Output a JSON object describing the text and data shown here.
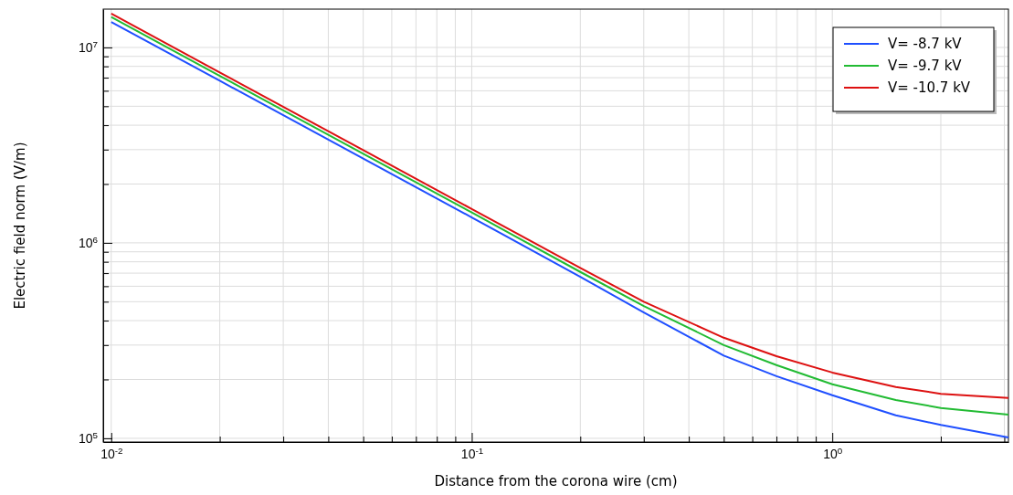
{
  "chart_data": {
    "type": "line",
    "xlabel": "Distance from the corona wire (cm)",
    "ylabel": "Electric field norm (V/m)",
    "log": "xy",
    "grid": true,
    "legend": "top right",
    "line_style": "solid",
    "marker": "none",
    "x": [
      0.01,
      0.02,
      0.05,
      0.1,
      0.2,
      0.3,
      0.5,
      0.7,
      1,
      1.5,
      2,
      3.08
    ],
    "xlim": [
      0.0095,
      3.08
    ],
    "xticks": [
      {
        "value": 0.01,
        "label": "10$^{-2}$"
      },
      {
        "value": 0.02,
        "label": null
      },
      {
        "value": 0.03,
        "label": null
      },
      {
        "value": 0.04,
        "label": null
      },
      {
        "value": 0.05,
        "label": null
      },
      {
        "value": 0.06,
        "label": null
      },
      {
        "value": 0.07,
        "label": null
      },
      {
        "value": 0.08,
        "label": null
      },
      {
        "value": 0.09,
        "label": null
      },
      {
        "value": 0.1,
        "label": "10$^{-1}$"
      },
      {
        "value": 0.2,
        "label": null
      },
      {
        "value": 0.3,
        "label": null
      },
      {
        "value": 0.4,
        "label": null
      },
      {
        "value": 0.5,
        "label": null
      },
      {
        "value": 0.6,
        "label": null
      },
      {
        "value": 0.7,
        "label": null
      },
      {
        "value": 0.8,
        "label": null
      },
      {
        "value": 0.9,
        "label": null
      },
      {
        "value": 1,
        "label": "10$^{0}$"
      },
      {
        "value": 2,
        "label": null
      },
      {
        "value": 3,
        "label": null
      }
    ],
    "ylim": [
      95700,
      15700000
    ],
    "yticks": [
      {
        "value": 100000,
        "label": "10$^{5}$"
      },
      {
        "value": 200000,
        "label": null
      },
      {
        "value": 300000,
        "label": null
      },
      {
        "value": 400000,
        "label": null
      },
      {
        "value": 500000,
        "label": null
      },
      {
        "value": 600000,
        "label": null
      },
      {
        "value": 700000,
        "label": null
      },
      {
        "value": 800000,
        "label": null
      },
      {
        "value": 900000,
        "label": null
      },
      {
        "value": 1000000,
        "label": "10$^{6}$"
      },
      {
        "value": 2000000,
        "label": null
      },
      {
        "value": 3000000,
        "label": null
      },
      {
        "value": 4000000,
        "label": null
      },
      {
        "value": 5000000,
        "label": null
      },
      {
        "value": 6000000,
        "label": null
      },
      {
        "value": 7000000,
        "label": null
      },
      {
        "value": 8000000,
        "label": null
      },
      {
        "value": 9000000,
        "label": null
      },
      {
        "value": 10000000,
        "label": "10$^{7}$"
      }
    ],
    "series": [
      {
        "name": "V= -8.7 kV",
        "color": "#1f4fff",
        "values": [
          13500000,
          6750000,
          2700000,
          1350000,
          670000,
          440000,
          265000,
          208000,
          166000,
          131000,
          117000,
          101000
        ]
      },
      {
        "name": "V= -9.7 kV",
        "color": "#22bb33",
        "values": [
          14300000,
          7150000,
          2860000,
          1430000,
          710000,
          475000,
          300000,
          237000,
          189000,
          157000,
          143000,
          132000
        ]
      },
      {
        "name": "V= -10.7 kV",
        "color": "#dd1111",
        "values": [
          14900000,
          7450000,
          2980000,
          1490000,
          745000,
          500000,
          327000,
          263000,
          217000,
          183000,
          169000,
          161000
        ]
      }
    ]
  }
}
